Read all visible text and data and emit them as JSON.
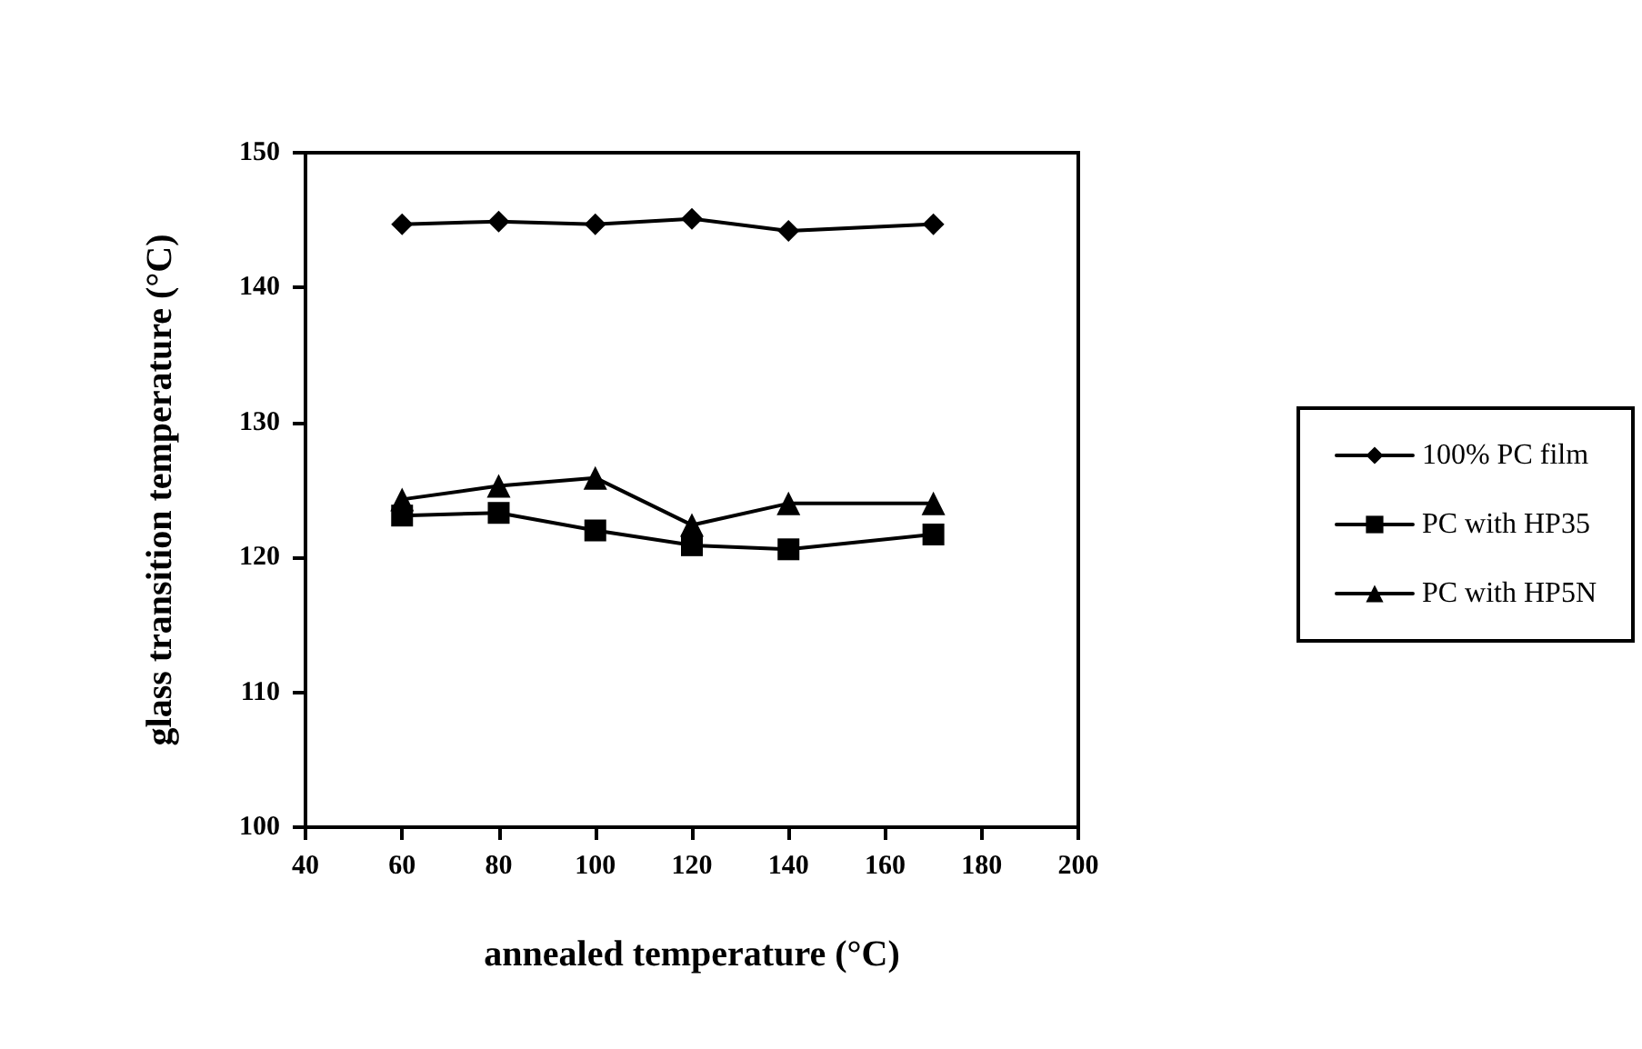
{
  "chart_data": {
    "type": "line",
    "xlabel": "annealed temperature (°C)",
    "ylabel": "glass transition temperature (°C)",
    "x": [
      60,
      80,
      100,
      120,
      140,
      170
    ],
    "series": [
      {
        "name": "100% PC film",
        "color": "#000000",
        "marker": "diamond",
        "values": [
          144.7,
          144.9,
          144.7,
          145.1,
          144.2,
          144.7
        ]
      },
      {
        "name": "PC with HP35",
        "color": "#000000",
        "marker": "square",
        "values": [
          123.1,
          123.3,
          122.0,
          120.9,
          120.6,
          121.7
        ]
      },
      {
        "name": "PC with HP5N",
        "color": "#000000",
        "marker": "triangle",
        "values": [
          124.3,
          125.3,
          125.9,
          122.4,
          124.0,
          124.0
        ]
      }
    ],
    "xlim": [
      40,
      200
    ],
    "xticks": [
      40,
      60,
      80,
      100,
      120,
      140,
      160,
      180,
      200
    ],
    "ylim": [
      100,
      150
    ],
    "yticks": [
      100,
      110,
      120,
      130,
      140,
      150
    ],
    "grid": false,
    "legend": "right",
    "line_style": "solid"
  }
}
